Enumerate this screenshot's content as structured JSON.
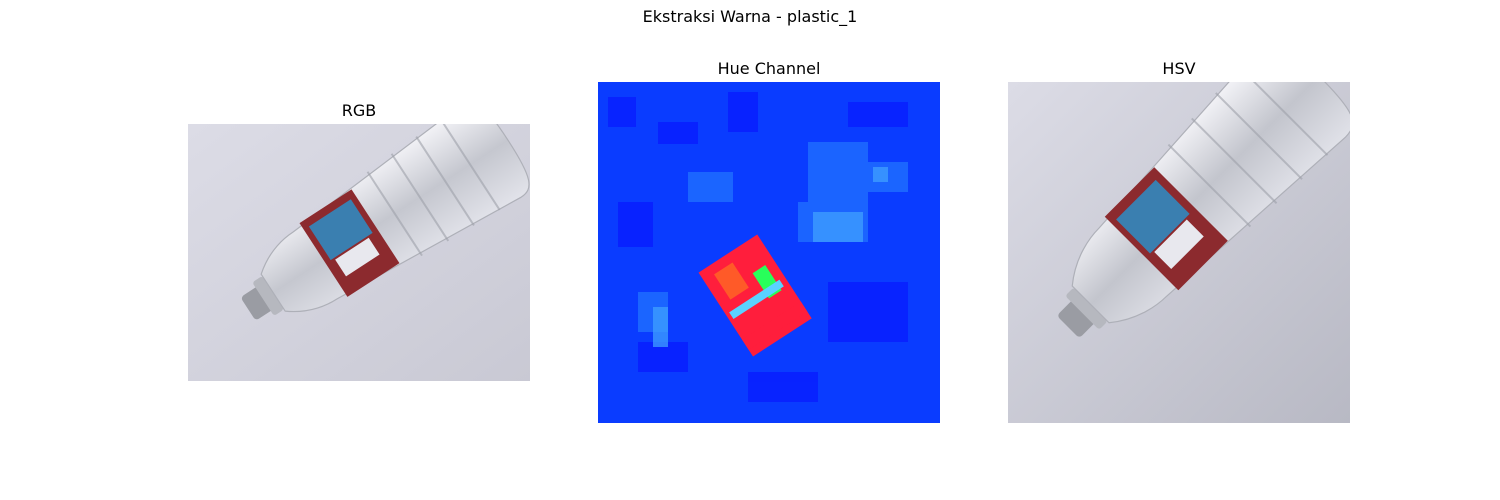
{
  "figure": {
    "suptitle": "Ekstraksi Warna - plastic_1"
  },
  "panels": [
    {
      "title": "RGB",
      "image_description": "plastic water bottle with red label lying diagonally on white background"
    },
    {
      "title": "Hue Channel",
      "image_description": "hue channel map: blue background with red and green region at bottle label"
    },
    {
      "title": "HSV",
      "image_description": "plastic water bottle with red label, square aspect"
    }
  ],
  "colors": {
    "background_rgb": "#d8d8e0",
    "label_red": "#8c2a2e",
    "hue_blue": "#0a3cff",
    "hue_red": "#ff1e3c",
    "hue_green": "#28ff5a"
  }
}
